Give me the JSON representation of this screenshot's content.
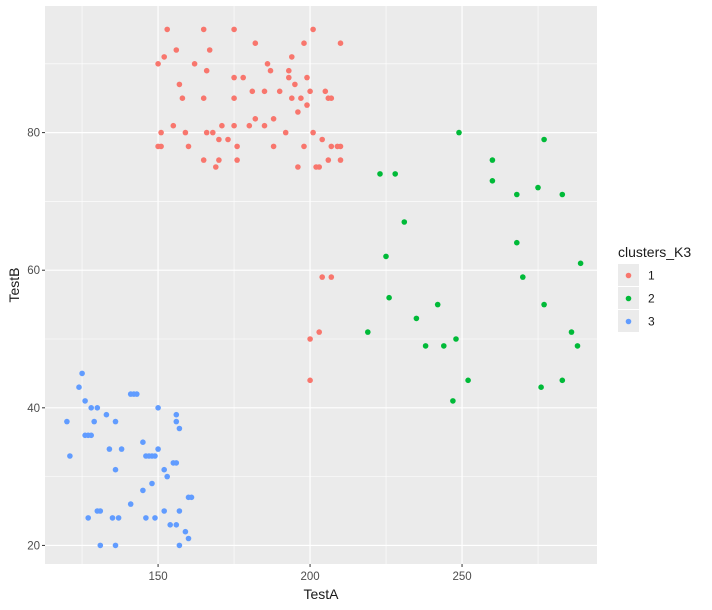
{
  "chart_data": {
    "type": "scatter",
    "xlabel": "TestA",
    "ylabel": "TestB",
    "xlim": [
      112.8,
      294.4
    ],
    "ylim": [
      17.3,
      98.4
    ],
    "x_ticks": [
      150,
      200,
      250
    ],
    "y_ticks": [
      20,
      40,
      60,
      80
    ],
    "x_tick_labels": [
      "150",
      "200",
      "250"
    ],
    "y_tick_labels": [
      "20",
      "40",
      "60",
      "80"
    ],
    "grid": true,
    "legend": {
      "title": "clusters_K3",
      "placement": "right"
    },
    "colors": {
      "1": "#F8766D",
      "2": "#00BA38",
      "3": "#619CFF",
      "panel": "#EBEBEB",
      "grid": "#FFFFFF"
    },
    "series": [
      {
        "name": "1",
        "points": [
          [
            150,
            90
          ],
          [
            152,
            91
          ],
          [
            153,
            95
          ],
          [
            165,
            95
          ],
          [
            175,
            95
          ],
          [
            201,
            95
          ],
          [
            156,
            92
          ],
          [
            167,
            92
          ],
          [
            182,
            93
          ],
          [
            198,
            93
          ],
          [
            210,
            93
          ],
          [
            162,
            90
          ],
          [
            186,
            90
          ],
          [
            194,
            91
          ],
          [
            166,
            89
          ],
          [
            187,
            89
          ],
          [
            193,
            89
          ],
          [
            175,
            88
          ],
          [
            178,
            88
          ],
          [
            193,
            88
          ],
          [
            199,
            88
          ],
          [
            195,
            87
          ],
          [
            157,
            87
          ],
          [
            181,
            86
          ],
          [
            185,
            86
          ],
          [
            190,
            86
          ],
          [
            200,
            86
          ],
          [
            205,
            86
          ],
          [
            158,
            85
          ],
          [
            165,
            85
          ],
          [
            175,
            85
          ],
          [
            194,
            85
          ],
          [
            197,
            85
          ],
          [
            206,
            85
          ],
          [
            207,
            85
          ],
          [
            199,
            84
          ],
          [
            159,
            80
          ],
          [
            166,
            80
          ],
          [
            168,
            80
          ],
          [
            170,
            79
          ],
          [
            173,
            79
          ],
          [
            155,
            81
          ],
          [
            151,
            80
          ],
          [
            171,
            81
          ],
          [
            175,
            81
          ],
          [
            180,
            81
          ],
          [
            185,
            81
          ],
          [
            188,
            82
          ],
          [
            182,
            82
          ],
          [
            196,
            83
          ],
          [
            192,
            80
          ],
          [
            201,
            80
          ],
          [
            204,
            79
          ],
          [
            150,
            78
          ],
          [
            151,
            78
          ],
          [
            160,
            78
          ],
          [
            176,
            78
          ],
          [
            188,
            78
          ],
          [
            198,
            78
          ],
          [
            207,
            78
          ],
          [
            209,
            78
          ],
          [
            210,
            78
          ],
          [
            165,
            76
          ],
          [
            176,
            76
          ],
          [
            196,
            75
          ],
          [
            202,
            75
          ],
          [
            203,
            75
          ],
          [
            206,
            76
          ],
          [
            210,
            76
          ],
          [
            169,
            75
          ],
          [
            170,
            76
          ],
          [
            204,
            59
          ],
          [
            207,
            59
          ],
          [
            203,
            51
          ],
          [
            200,
            50
          ],
          [
            200,
            44
          ]
        ]
      },
      {
        "name": "2",
        "points": [
          [
            249,
            80
          ],
          [
            277,
            79
          ],
          [
            260,
            76
          ],
          [
            223,
            74
          ],
          [
            228,
            74
          ],
          [
            260,
            73
          ],
          [
            275,
            72
          ],
          [
            268,
            71
          ],
          [
            283,
            71
          ],
          [
            231,
            67
          ],
          [
            268,
            64
          ],
          [
            225,
            62
          ],
          [
            289,
            61
          ],
          [
            270,
            59
          ],
          [
            226,
            56
          ],
          [
            242,
            55
          ],
          [
            277,
            55
          ],
          [
            235,
            53
          ],
          [
            219,
            51
          ],
          [
            286,
            51
          ],
          [
            248,
            50
          ],
          [
            238,
            49
          ],
          [
            244,
            49
          ],
          [
            288,
            49
          ],
          [
            252,
            44
          ],
          [
            283,
            44
          ],
          [
            276,
            43
          ],
          [
            247,
            41
          ]
        ]
      },
      {
        "name": "3",
        "points": [
          [
            125,
            45
          ],
          [
            124,
            43
          ],
          [
            141,
            42
          ],
          [
            142,
            42
          ],
          [
            143,
            42
          ],
          [
            126,
            41
          ],
          [
            128,
            40
          ],
          [
            130,
            40
          ],
          [
            150,
            40
          ],
          [
            133,
            39
          ],
          [
            156,
            39
          ],
          [
            120,
            38
          ],
          [
            129,
            38
          ],
          [
            136,
            38
          ],
          [
            156,
            38
          ],
          [
            157,
            37
          ],
          [
            126,
            36
          ],
          [
            127,
            36
          ],
          [
            128,
            36
          ],
          [
            145,
            35
          ],
          [
            134,
            34
          ],
          [
            138,
            34
          ],
          [
            150,
            34
          ],
          [
            148,
            33
          ],
          [
            121,
            33
          ],
          [
            146,
            33
          ],
          [
            147,
            33
          ],
          [
            149,
            33
          ],
          [
            155,
            32
          ],
          [
            156,
            32
          ],
          [
            152,
            31
          ],
          [
            136,
            31
          ],
          [
            153,
            30
          ],
          [
            148,
            29
          ],
          [
            145,
            28
          ],
          [
            160,
            27
          ],
          [
            161,
            27
          ],
          [
            141,
            26
          ],
          [
            152,
            25
          ],
          [
            130,
            25
          ],
          [
            131,
            25
          ],
          [
            157,
            25
          ],
          [
            127,
            24
          ],
          [
            135,
            24
          ],
          [
            137,
            24
          ],
          [
            146,
            24
          ],
          [
            149,
            24
          ],
          [
            156,
            23
          ],
          [
            154,
            23
          ],
          [
            159,
            22
          ],
          [
            160,
            21
          ],
          [
            131,
            20
          ],
          [
            136,
            20
          ],
          [
            157,
            20
          ]
        ]
      }
    ]
  }
}
